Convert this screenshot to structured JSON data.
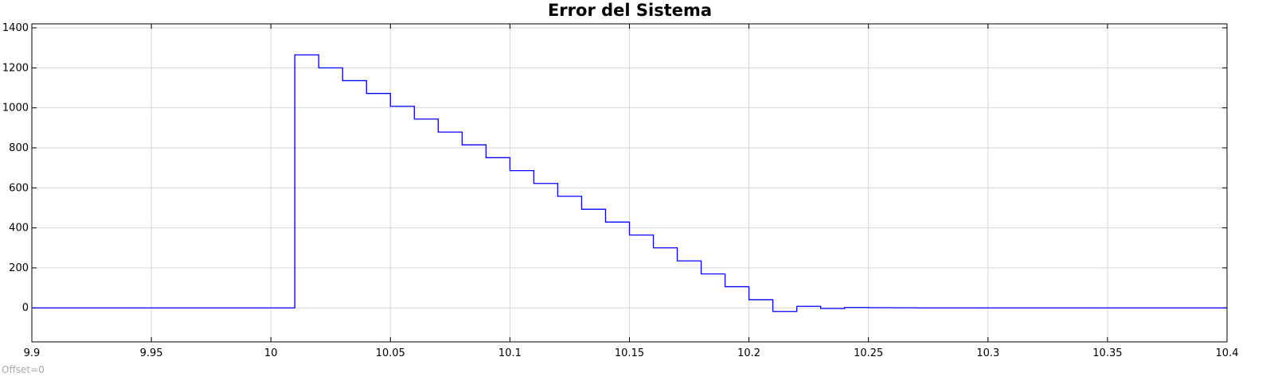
{
  "offset_label": "Offset=0",
  "chart_data": {
    "type": "line",
    "step": true,
    "title": "Error del Sistema",
    "xlabel": "",
    "ylabel": "",
    "xlim": [
      9.9,
      10.4
    ],
    "ylim": [
      -170,
      1420
    ],
    "grid": true,
    "line_color": "#0000ff",
    "x_ticks": [
      9.9,
      9.95,
      10,
      10.05,
      10.1,
      10.15,
      10.2,
      10.25,
      10.3,
      10.35,
      10.4
    ],
    "x_tick_labels": [
      "9.9",
      "9.95",
      "10",
      "10.05",
      "10.1",
      "10.15",
      "10.2",
      "10.25",
      "10.3",
      "10.35",
      "10.4"
    ],
    "y_ticks": [
      0,
      200,
      400,
      600,
      800,
      1000,
      1200,
      1400
    ],
    "y_tick_labels": [
      "0",
      "200",
      "400",
      "600",
      "800",
      "1000",
      "1200",
      "1400"
    ],
    "series": [
      {
        "x": [
          9.9,
          10.01,
          10.02,
          10.03,
          10.04,
          10.05,
          10.06,
          10.07,
          10.08,
          10.09,
          10.1,
          10.11,
          10.12,
          10.13,
          10.14,
          10.15,
          10.16,
          10.17,
          10.18,
          10.19,
          10.2,
          10.21,
          10.22,
          10.23,
          10.24,
          10.25,
          10.26,
          10.27,
          10.4
        ],
        "y": [
          0,
          1265,
          1200,
          1136,
          1072,
          1008,
          944,
          879,
          815,
          751,
          686,
          622,
          558,
          493,
          429,
          364,
          300,
          235,
          170,
          106,
          41,
          -18,
          8,
          -3,
          2,
          1,
          0.5,
          0,
          0
        ]
      }
    ]
  }
}
